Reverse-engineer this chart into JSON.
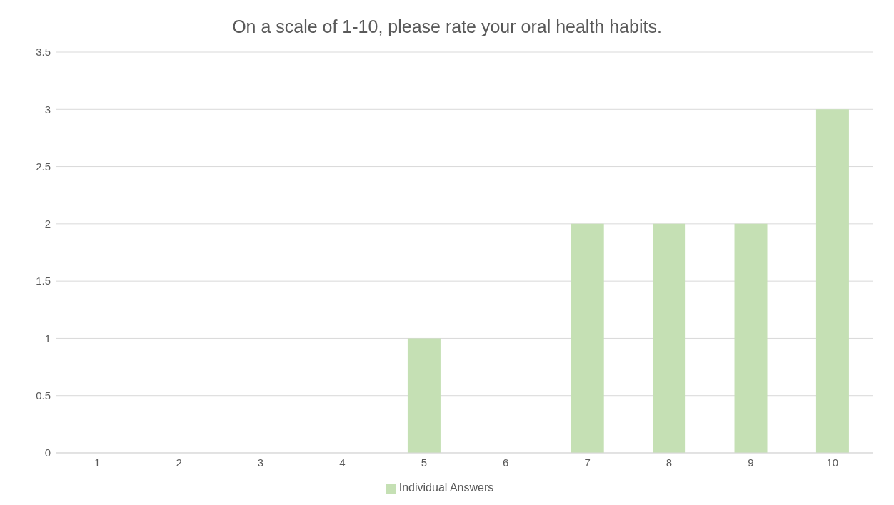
{
  "chart_data": {
    "type": "bar",
    "title": "On a scale of 1-10, please rate your oral health habits.",
    "categories": [
      "1",
      "2",
      "3",
      "4",
      "5",
      "6",
      "7",
      "8",
      "9",
      "10"
    ],
    "series": [
      {
        "name": "Individual Answers",
        "color": "#c5e0b4",
        "values": [
          0,
          0,
          0,
          0,
          1,
          0,
          2,
          2,
          2,
          3
        ]
      }
    ],
    "ylim": [
      0,
      3.5
    ],
    "yticks": [
      0,
      0.5,
      1,
      1.5,
      2,
      2.5,
      3,
      3.5
    ],
    "grid": "y",
    "legend": "bottom"
  }
}
